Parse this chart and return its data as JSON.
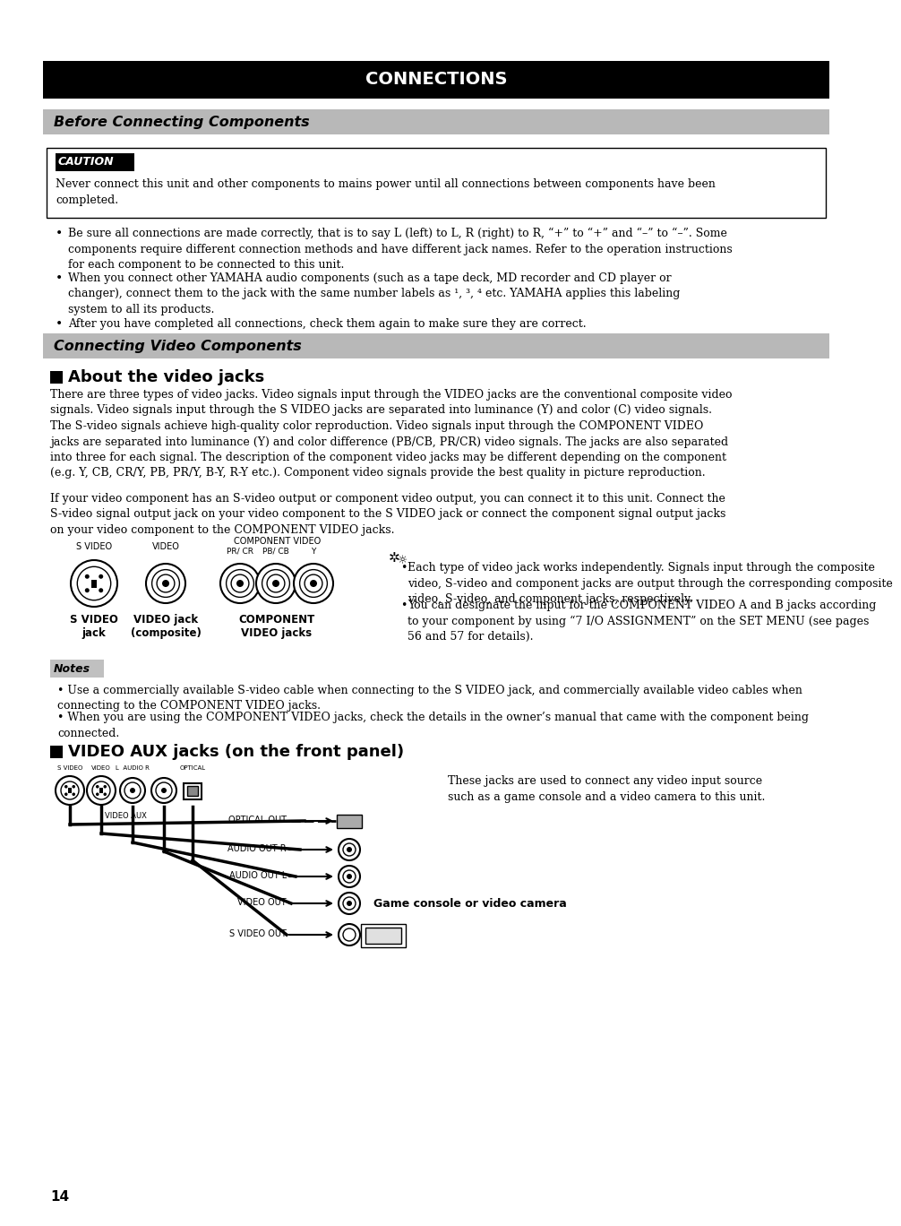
{
  "page_bg": "#ffffff",
  "title_bar_color": "#000000",
  "title_text": "CONNECTIONS",
  "title_text_color": "#ffffff",
  "section1_bar_color": "#b8b8b8",
  "section1_text": "Before Connecting Components",
  "section2_bar_color": "#b8b8b8",
  "section2_text": "Connecting Video Components",
  "caution_label": "CAUTION",
  "caution_text": "Never connect this unit and other components to mains power until all connections between components have been\ncompleted.",
  "bullet1": "Be sure all connections are made correctly, that is to say L (left) to L, R (right) to R, “+” to “+” and “–” to “–”. Some\ncomponents require different connection methods and have different jack names. Refer to the operation instructions\nfor each component to be connected to this unit.",
  "bullet2": "When you connect other YAMAHA audio components (such as a tape deck, MD recorder and CD player or\nchanger), connect them to the jack with the same number labels as ¹, ³, ⁴ etc. YAMAHA applies this labeling\nsystem to all its products.",
  "bullet3": "After you have completed all connections, check them again to make sure they are correct.",
  "subsection1_text": "About the video jacks",
  "para1": "There are three types of video jacks. Video signals input through the VIDEO jacks are the conventional composite video\nsignals. Video signals input through the S VIDEO jacks are separated into luminance (Y) and color (C) video signals.\nThe S-video signals achieve high-quality color reproduction. Video signals input through the COMPONENT VIDEO\njacks are separated into luminance (Y) and color difference (PB/CB, PR/CR) video signals. The jacks are also separated\ninto three for each signal. The description of the component video jacks may be different depending on the component\n(e.g. Y, CB, CR/Y, PB, PR/Y, B-Y, R-Y etc.). Component video signals provide the best quality in picture reproduction.",
  "para2": "If your video component has an S-video output or component video output, you can connect it to this unit. Connect the\nS-video signal output jack on your video component to the S VIDEO jack or connect the component signal output jacks\non your video component to the COMPONENT VIDEO jacks.",
  "bullet_a": "Each type of video jack works independently. Signals input through the composite\nvideo, S-video and component jacks are output through the corresponding composite\nvideo, S-video, and component jacks, respectively.",
  "bullet_b": "You can designate the input for the COMPONENT VIDEO A and B jacks according\nto your component by using “7 I/O ASSIGNMENT” on the SET MENU (see pages\n56 and 57 for details).",
  "notes_label": "Notes",
  "note1": "Use a commercially available S-video cable when connecting to the S VIDEO jack, and commercially available video cables when\nconnecting to the COMPONENT VIDEO jacks.",
  "note2": "When you are using the COMPONENT VIDEO jacks, check the details in the owner’s manual that came with the component being\nconnected.",
  "subsection2_text": "VIDEO AUX jacks (on the front panel)",
  "aux_text": "These jacks are used to connect any video input source\nsuch as a game console and a video camera to this unit.",
  "game_label": "Game console or video camera",
  "page_number": "14",
  "svideo_label": "S VIDEO\njack",
  "video_label": "VIDEO jack\n(composite)",
  "component_label": "COMPONENT\nVIDEO jacks",
  "comp_video_header": "COMPONENT VIDEO",
  "pr_cr_label": "PR/ CR",
  "pb_cb_label": "PB/ CB",
  "y_label": "Y"
}
